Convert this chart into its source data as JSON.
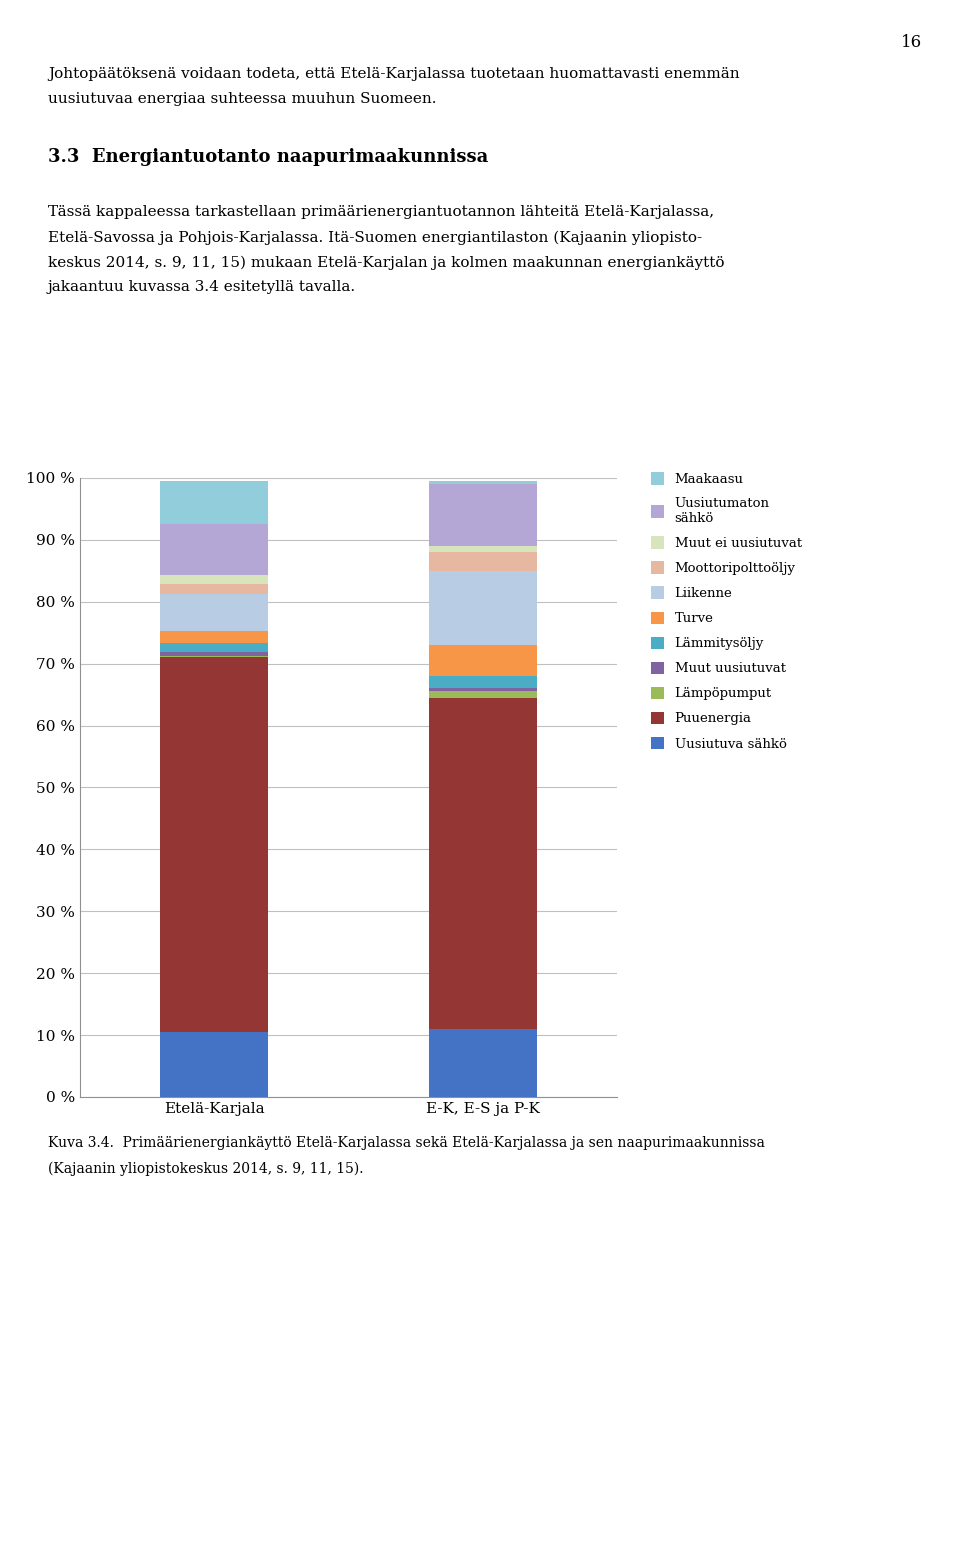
{
  "categories": [
    "Etelä-Karjala",
    "E-K, E-S ja P-K"
  ],
  "series": [
    {
      "label": "Uusiutuva sähkö",
      "color": "#4472C4",
      "values": [
        10.5,
        11.0
      ]
    },
    {
      "label": "Puuenergia",
      "color": "#943634",
      "values": [
        60.5,
        53.5
      ]
    },
    {
      "label": "Lämpöpumput",
      "color": "#9BBB59",
      "values": [
        0.3,
        1.0
      ]
    },
    {
      "label": "Muut uusiutuvat",
      "color": "#8064A2",
      "values": [
        0.5,
        0.5
      ]
    },
    {
      "label": "Lämmitysöljy",
      "color": "#4BACC6",
      "values": [
        1.5,
        2.0
      ]
    },
    {
      "label": "Turve",
      "color": "#F79646",
      "values": [
        2.0,
        5.0
      ]
    },
    {
      "label": "Liikenne",
      "color": "#B8CCE4",
      "values": [
        6.0,
        12.0
      ]
    },
    {
      "label": "Moottoripolttoöljy",
      "color": "#E6B8A2",
      "values": [
        1.5,
        3.0
      ]
    },
    {
      "label": "Muut ei uusiutuvat",
      "color": "#D8E4BC",
      "values": [
        1.5,
        1.0
      ]
    },
    {
      "label": "Uusiutumaton sähkö",
      "color": "#B4A7D6",
      "values": [
        8.2,
        10.0
      ]
    },
    {
      "label": "Maakaasu",
      "color": "#92CDDC",
      "values": [
        7.0,
        0.5
      ]
    }
  ],
  "yticks": [
    0,
    10,
    20,
    30,
    40,
    50,
    60,
    70,
    80,
    90,
    100
  ],
  "ytick_labels": [
    "0 %",
    "10 %",
    "20 %",
    "30 %",
    "40 %",
    "50 %",
    "60 %",
    "70 %",
    "80 %",
    "90 %",
    "100 %"
  ],
  "background_color": "#FFFFFF",
  "grid_color": "#C0C0C0",
  "bar_width": 0.4,
  "legend_order": [
    10,
    9,
    8,
    7,
    6,
    5,
    4,
    3,
    2,
    1,
    0
  ],
  "legend_labels_order": [
    "Maakaasu",
    "Uusiutumaton\nsähkö",
    "Muut ei uusiutuvat",
    "Moottoripolttoöljy",
    "Liikenne",
    "Turve",
    "Lämmitysöljy",
    "Muut uusiutuvat",
    "Lämpöpumput",
    "Puuenergia",
    "Uusiutuva sähkö"
  ],
  "page_number": "16",
  "header_line1": "Johtopäätöksenä voidaan todeta, että Etelä-Karjalassa tuotetaan huomattavasti enemmän",
  "header_line2": "uusiutuvaa energiaa suhteessa muuhun Suomeen.",
  "section_title": "3.3  Energiantuotanto naapurimaakunnissa",
  "body_lines": [
    "Tässä kappaleessa tarkastellaan primäärienergiantuotannon lähteitä Etelä-Karjalassa,",
    "Etelä-Savossa ja Pohjois-Karjalassa. Itä-Suomen energiantilaston (Kajaanin yliopisto-",
    "keskus 2014, s. 9, 11, 15) mukaan Etelä-Karjalan ja kolmen maakunnan energiankäyttö",
    "jakaantuu kuvassa 3.4 esitetyllä tavalla."
  ],
  "caption_lines": [
    "Kuva 3.4.  Primäärienergiankäyttö Etelä-Karjalassa sekä Etelä-Karjalassa ja sen naapurimaakunnissa",
    "(Kajaanin yliopistokeskus 2014, s. 9, 11, 15)."
  ],
  "fig_width": 9.6,
  "fig_height": 15.67,
  "dpi": 100
}
